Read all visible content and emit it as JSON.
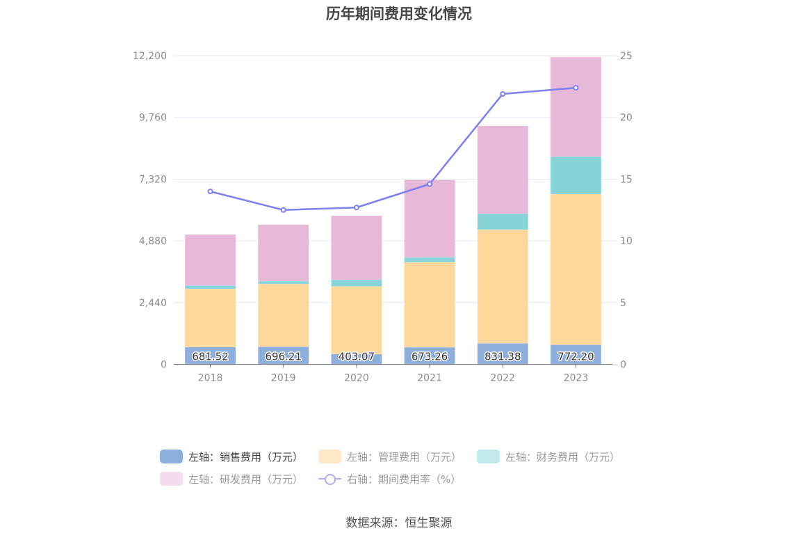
{
  "title": "历年期间费用变化情况",
  "source": "数据来源：恒生聚源",
  "chart_data": {
    "type": "bar",
    "stacked": true,
    "title": "历年期间费用变化情况",
    "categories": [
      "2018",
      "2019",
      "2020",
      "2021",
      "2022",
      "2023"
    ],
    "left_axis": {
      "ylim": [
        0,
        12200
      ],
      "ticks": [
        0,
        2440,
        4880,
        7320,
        9760,
        12200
      ],
      "tick_labels": [
        "0",
        "2,440",
        "4,880",
        "7,320",
        "9,760",
        "12,200"
      ]
    },
    "right_axis": {
      "ylim": [
        0,
        25
      ],
      "ticks": [
        0,
        5,
        10,
        15,
        20,
        25
      ],
      "tick_labels": [
        "0",
        "5",
        "10",
        "15",
        "20",
        "25"
      ]
    },
    "grid": true,
    "legend_position": "bottom",
    "series": [
      {
        "name": "左轴：销售费用（万元）",
        "type": "bar",
        "axis": "left",
        "color": "#8eaedc",
        "values": [
          681.52,
          696.21,
          403.07,
          673.26,
          831.38,
          772.2
        ],
        "labels": [
          "681.52",
          "696.21",
          "403.07",
          "673.26",
          "831.38",
          "772.20"
        ]
      },
      {
        "name": "左轴：管理费用（万元）",
        "type": "bar",
        "axis": "left",
        "color": "#fed89b",
        "values": [
          2303,
          2481,
          2678,
          3357,
          4492,
          5954
        ]
      },
      {
        "name": "左轴：财务费用（万元）",
        "type": "bar",
        "axis": "left",
        "color": "#87d4d8",
        "values": [
          124,
          111,
          262,
          193,
          633,
          1486
        ]
      },
      {
        "name": "左轴：研发费用（万元）",
        "type": "bar",
        "axis": "left",
        "color": "#e8b8d9",
        "values": [
          2022,
          2228,
          2531,
          3067,
          3466,
          3934
        ]
      },
      {
        "name": "右轴：期间费用率（%）",
        "type": "line",
        "axis": "right",
        "color": "#7b7ff0",
        "values": [
          14.0,
          12.5,
          12.7,
          14.6,
          21.9,
          22.4
        ]
      }
    ]
  },
  "legend": {
    "colors": [
      "#8eaedc",
      "#fde8c8",
      "#c2e9ec",
      "#f3dcee"
    ]
  }
}
